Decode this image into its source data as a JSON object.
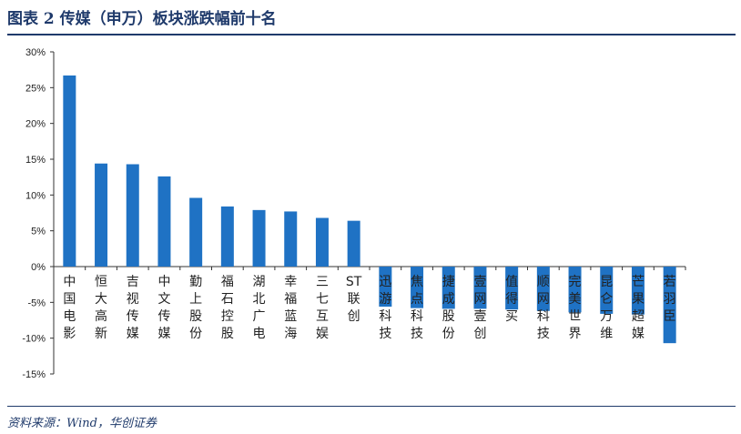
{
  "header": {
    "title": "图表 2   传媒（申万）板块涨跌幅前十名"
  },
  "footer": {
    "source": "资料来源：Wind，华创证券"
  },
  "chart_data": {
    "type": "bar",
    "title": "",
    "xlabel": "",
    "ylabel": "",
    "ylim": [
      -15,
      30
    ],
    "yticks": [
      "30%",
      "25%",
      "20%",
      "15%",
      "10%",
      "5%",
      "0%",
      "-5%",
      "-10%",
      "-15%"
    ],
    "grid": false,
    "legend": "none",
    "bar_color": "#1f72c4",
    "categories": [
      "中国电影",
      "恒大高新",
      "吉视传媒",
      "中文传媒",
      "勤上股份",
      "福石控股",
      "湖北广电",
      "幸福蓝海",
      "三七互娱",
      "ST联创",
      "迅游科技",
      "焦点科技",
      "捷成股份",
      "壹网壹创",
      "值得买",
      "顺网科技",
      "完美世界",
      "昆仑万维",
      "芒果超媒",
      "若羽臣"
    ],
    "values": [
      26.7,
      14.4,
      14.3,
      12.6,
      9.6,
      8.4,
      7.9,
      7.7,
      6.8,
      6.4,
      -5.6,
      -5.8,
      -5.9,
      -5.9,
      -6.0,
      -6.2,
      -6.4,
      -6.6,
      -6.7,
      -10.7
    ],
    "labels": [
      [
        "中",
        "国",
        "电",
        "影"
      ],
      [
        "恒",
        "大",
        "高",
        "新"
      ],
      [
        "吉",
        "视",
        "传",
        "媒"
      ],
      [
        "中",
        "文",
        "传",
        "媒"
      ],
      [
        "勤",
        "上",
        "股",
        "份"
      ],
      [
        "福",
        "石",
        "控",
        "股"
      ],
      [
        "湖",
        "北",
        "广",
        "电"
      ],
      [
        "幸",
        "福",
        "蓝",
        "海"
      ],
      [
        "三",
        "七",
        "互",
        "娱"
      ],
      [
        "ST",
        "联",
        "创"
      ],
      [
        "迅",
        "游",
        "科",
        "技"
      ],
      [
        "焦",
        "点",
        "科",
        "技"
      ],
      [
        "捷",
        "成",
        "股",
        "份"
      ],
      [
        "壹",
        "网",
        "壹",
        "创"
      ],
      [
        "值",
        "得",
        "买"
      ],
      [
        "顺",
        "网",
        "科",
        "技"
      ],
      [
        "完",
        "美",
        "世",
        "界"
      ],
      [
        "昆",
        "仑",
        "万",
        "维"
      ],
      [
        "芒",
        "果",
        "超",
        "媒"
      ],
      [
        "若",
        "羽",
        "臣"
      ]
    ]
  }
}
